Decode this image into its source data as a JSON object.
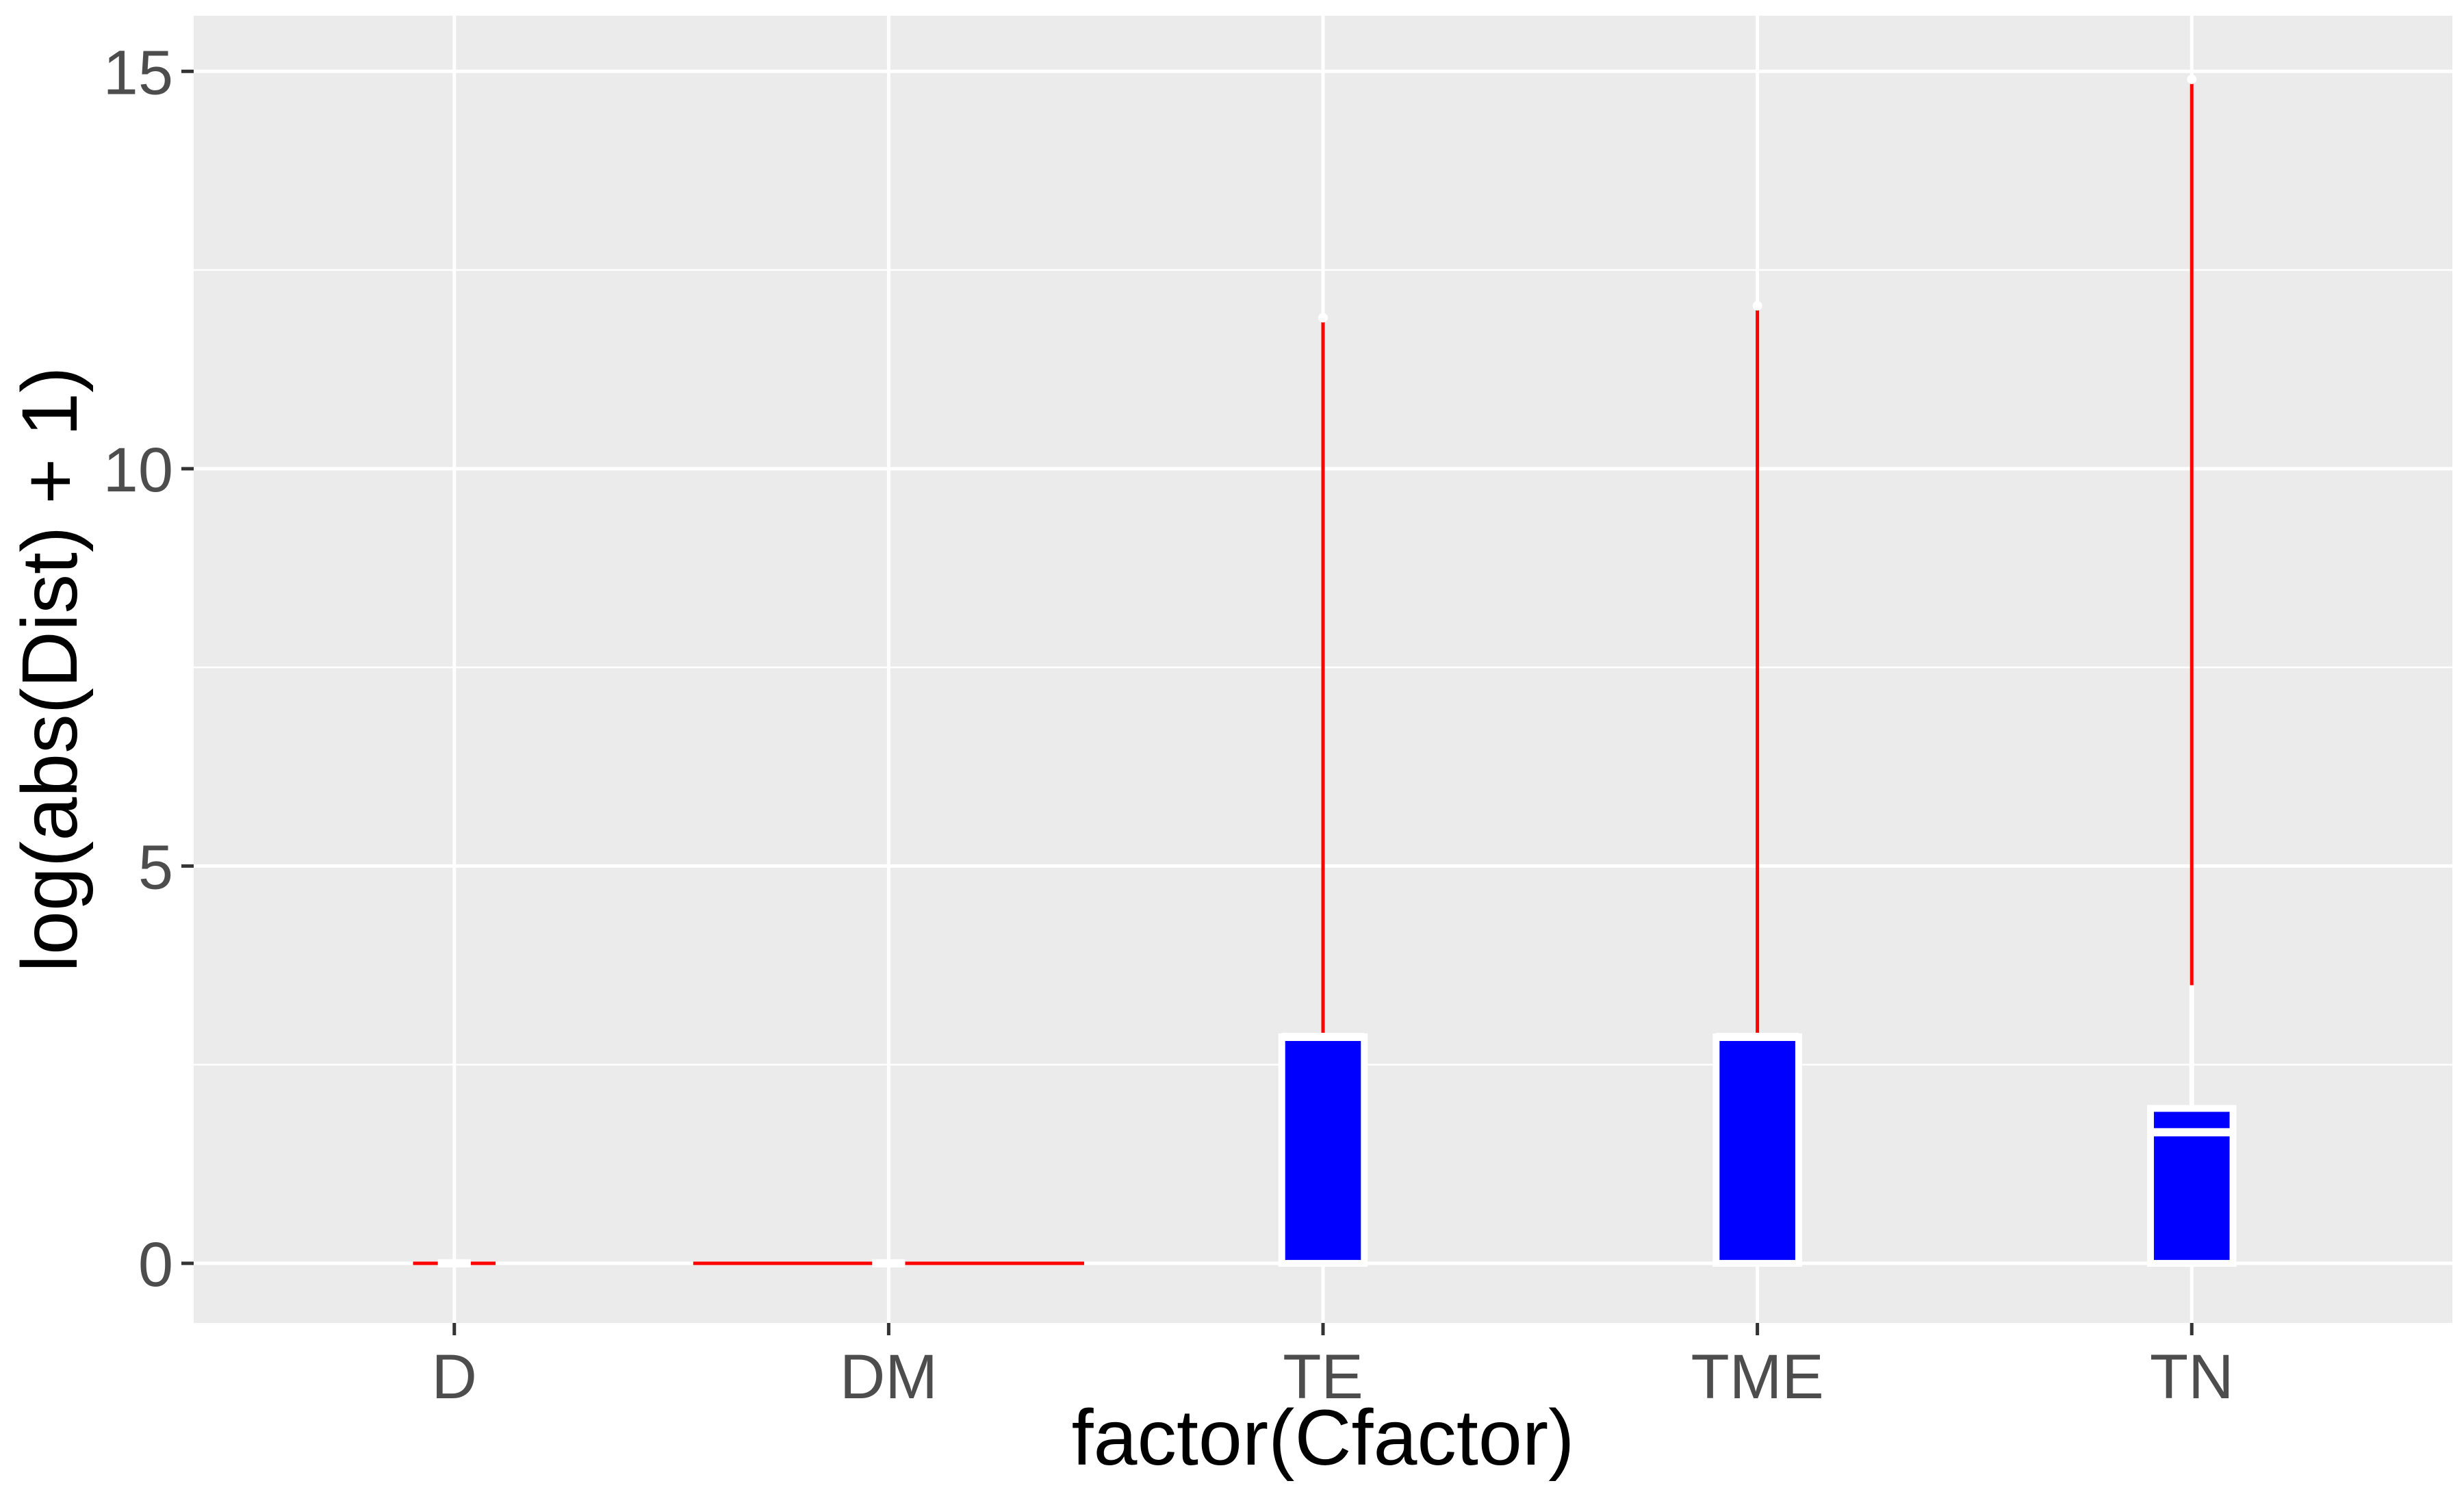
{
  "chart_data": {
    "type": "box",
    "xlabel": "factor(Cfactor)",
    "ylabel": "log(abs(Dist) + 1)",
    "categories": [
      "D",
      "DM",
      "TE",
      "TME",
      "TN"
    ],
    "ylim": [
      -0.75,
      15.7
    ],
    "yticks": [
      0,
      5,
      10,
      15
    ],
    "boxes": [
      {
        "category": "D",
        "min": 0,
        "q1": 0,
        "median": 0,
        "q3": 0,
        "max": 0,
        "outliers": [],
        "relative_width": 0.19
      },
      {
        "category": "DM",
        "min": 0,
        "q1": 0,
        "median": 0,
        "q3": 0,
        "max": 0,
        "outliers": [],
        "relative_width": 0.9
      },
      {
        "category": "TE",
        "min": 0,
        "q1": 0,
        "median": 2.85,
        "q3": 2.85,
        "max": 11.85,
        "outliers": [
          11.9
        ],
        "relative_width": 0.19
      },
      {
        "category": "TME",
        "min": 0,
        "q1": 0,
        "median": 2.85,
        "q3": 2.85,
        "max": 12.05,
        "outliers": [
          12.05
        ],
        "relative_width": 0.19
      },
      {
        "category": "TN",
        "min": 0,
        "q1": 0,
        "median": 1.65,
        "q3": 1.95,
        "max": 14.85,
        "outliers": [
          14.9
        ],
        "relative_width": 0.19
      }
    ],
    "grid": true,
    "colors": {
      "panel_background": "#ebebeb",
      "grid": "#ffffff",
      "box_fill": "#0000ff",
      "box_outline": "#ffffff",
      "whisker": "#ff0000",
      "outlier": "#ffffff",
      "tick_text": "#4d4d4d",
      "title_text": "#000000"
    }
  }
}
